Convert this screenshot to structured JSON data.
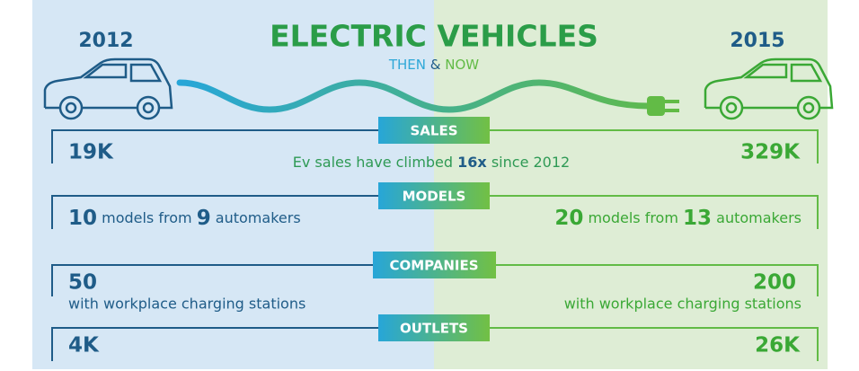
{
  "header": {
    "title": "ELECTRIC VEHICLES",
    "subtitle": {
      "then": "THEN",
      "amp": "&",
      "now": "NOW"
    },
    "year_then": "2012",
    "year_now": "2015"
  },
  "sections": [
    {
      "label": "SALES",
      "then": {
        "value": "19K"
      },
      "now": {
        "value": "329K"
      },
      "note": {
        "before": "Ev sales have climbed",
        "highlight": "16x",
        "after": "since 2012"
      }
    },
    {
      "label": "MODELS",
      "then": {
        "models": "10",
        "text1": "models from",
        "automakers": "9",
        "text2": "automakers"
      },
      "now": {
        "models": "20",
        "text1": "models from",
        "automakers": "13",
        "text2": "automakers"
      }
    },
    {
      "label": "COMPANIES",
      "then": {
        "value": "50",
        "text": "with workplace charging stations"
      },
      "now": {
        "value": "200",
        "text": "with workplace charging stations"
      }
    },
    {
      "label": "OUTLETS",
      "then": {
        "value": "4K"
      },
      "now": {
        "value": "26K"
      }
    }
  ]
}
